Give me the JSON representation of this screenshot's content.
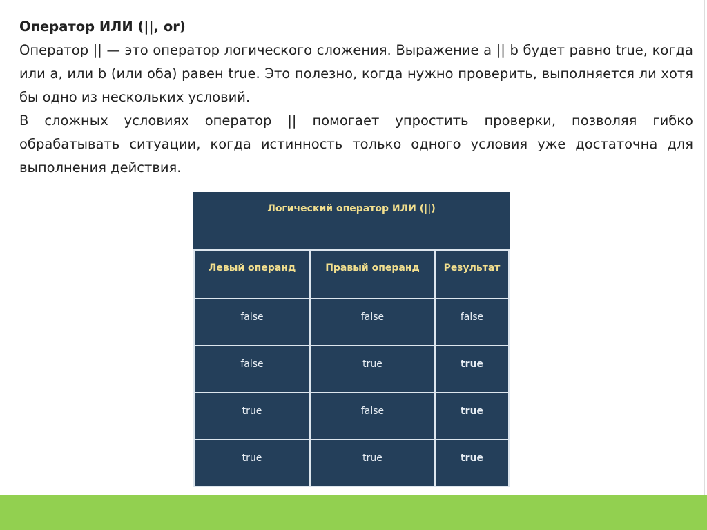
{
  "title": "Оператор ИЛИ (||, or)",
  "paragraphs": [
    "Оператор || — это оператор логического сложения. Выражение a || b будет равно true, когда или a, или b (или оба) равен true. Это полезно, когда нужно проверить, выполняется ли хотя бы одно из нескольких условий.",
    "В сложных условиях оператор || помогает упростить проверки, позволяя гибко обрабатывать ситуации, когда истинность только одного условия уже достаточна для выполнения действия."
  ],
  "table": {
    "caption": "Логический оператор ИЛИ (||)",
    "headers": [
      "Левый операнд",
      "Правый операнд",
      "Результат"
    ],
    "rows": [
      [
        "false",
        "false",
        "false"
      ],
      [
        "false",
        "true",
        "true"
      ],
      [
        "true",
        "false",
        "true"
      ],
      [
        "true",
        "true",
        "true"
      ]
    ]
  },
  "colors": {
    "table_bg": "#243f5a",
    "header_text": "#f2df8e",
    "footer_bar": "#92d050"
  }
}
